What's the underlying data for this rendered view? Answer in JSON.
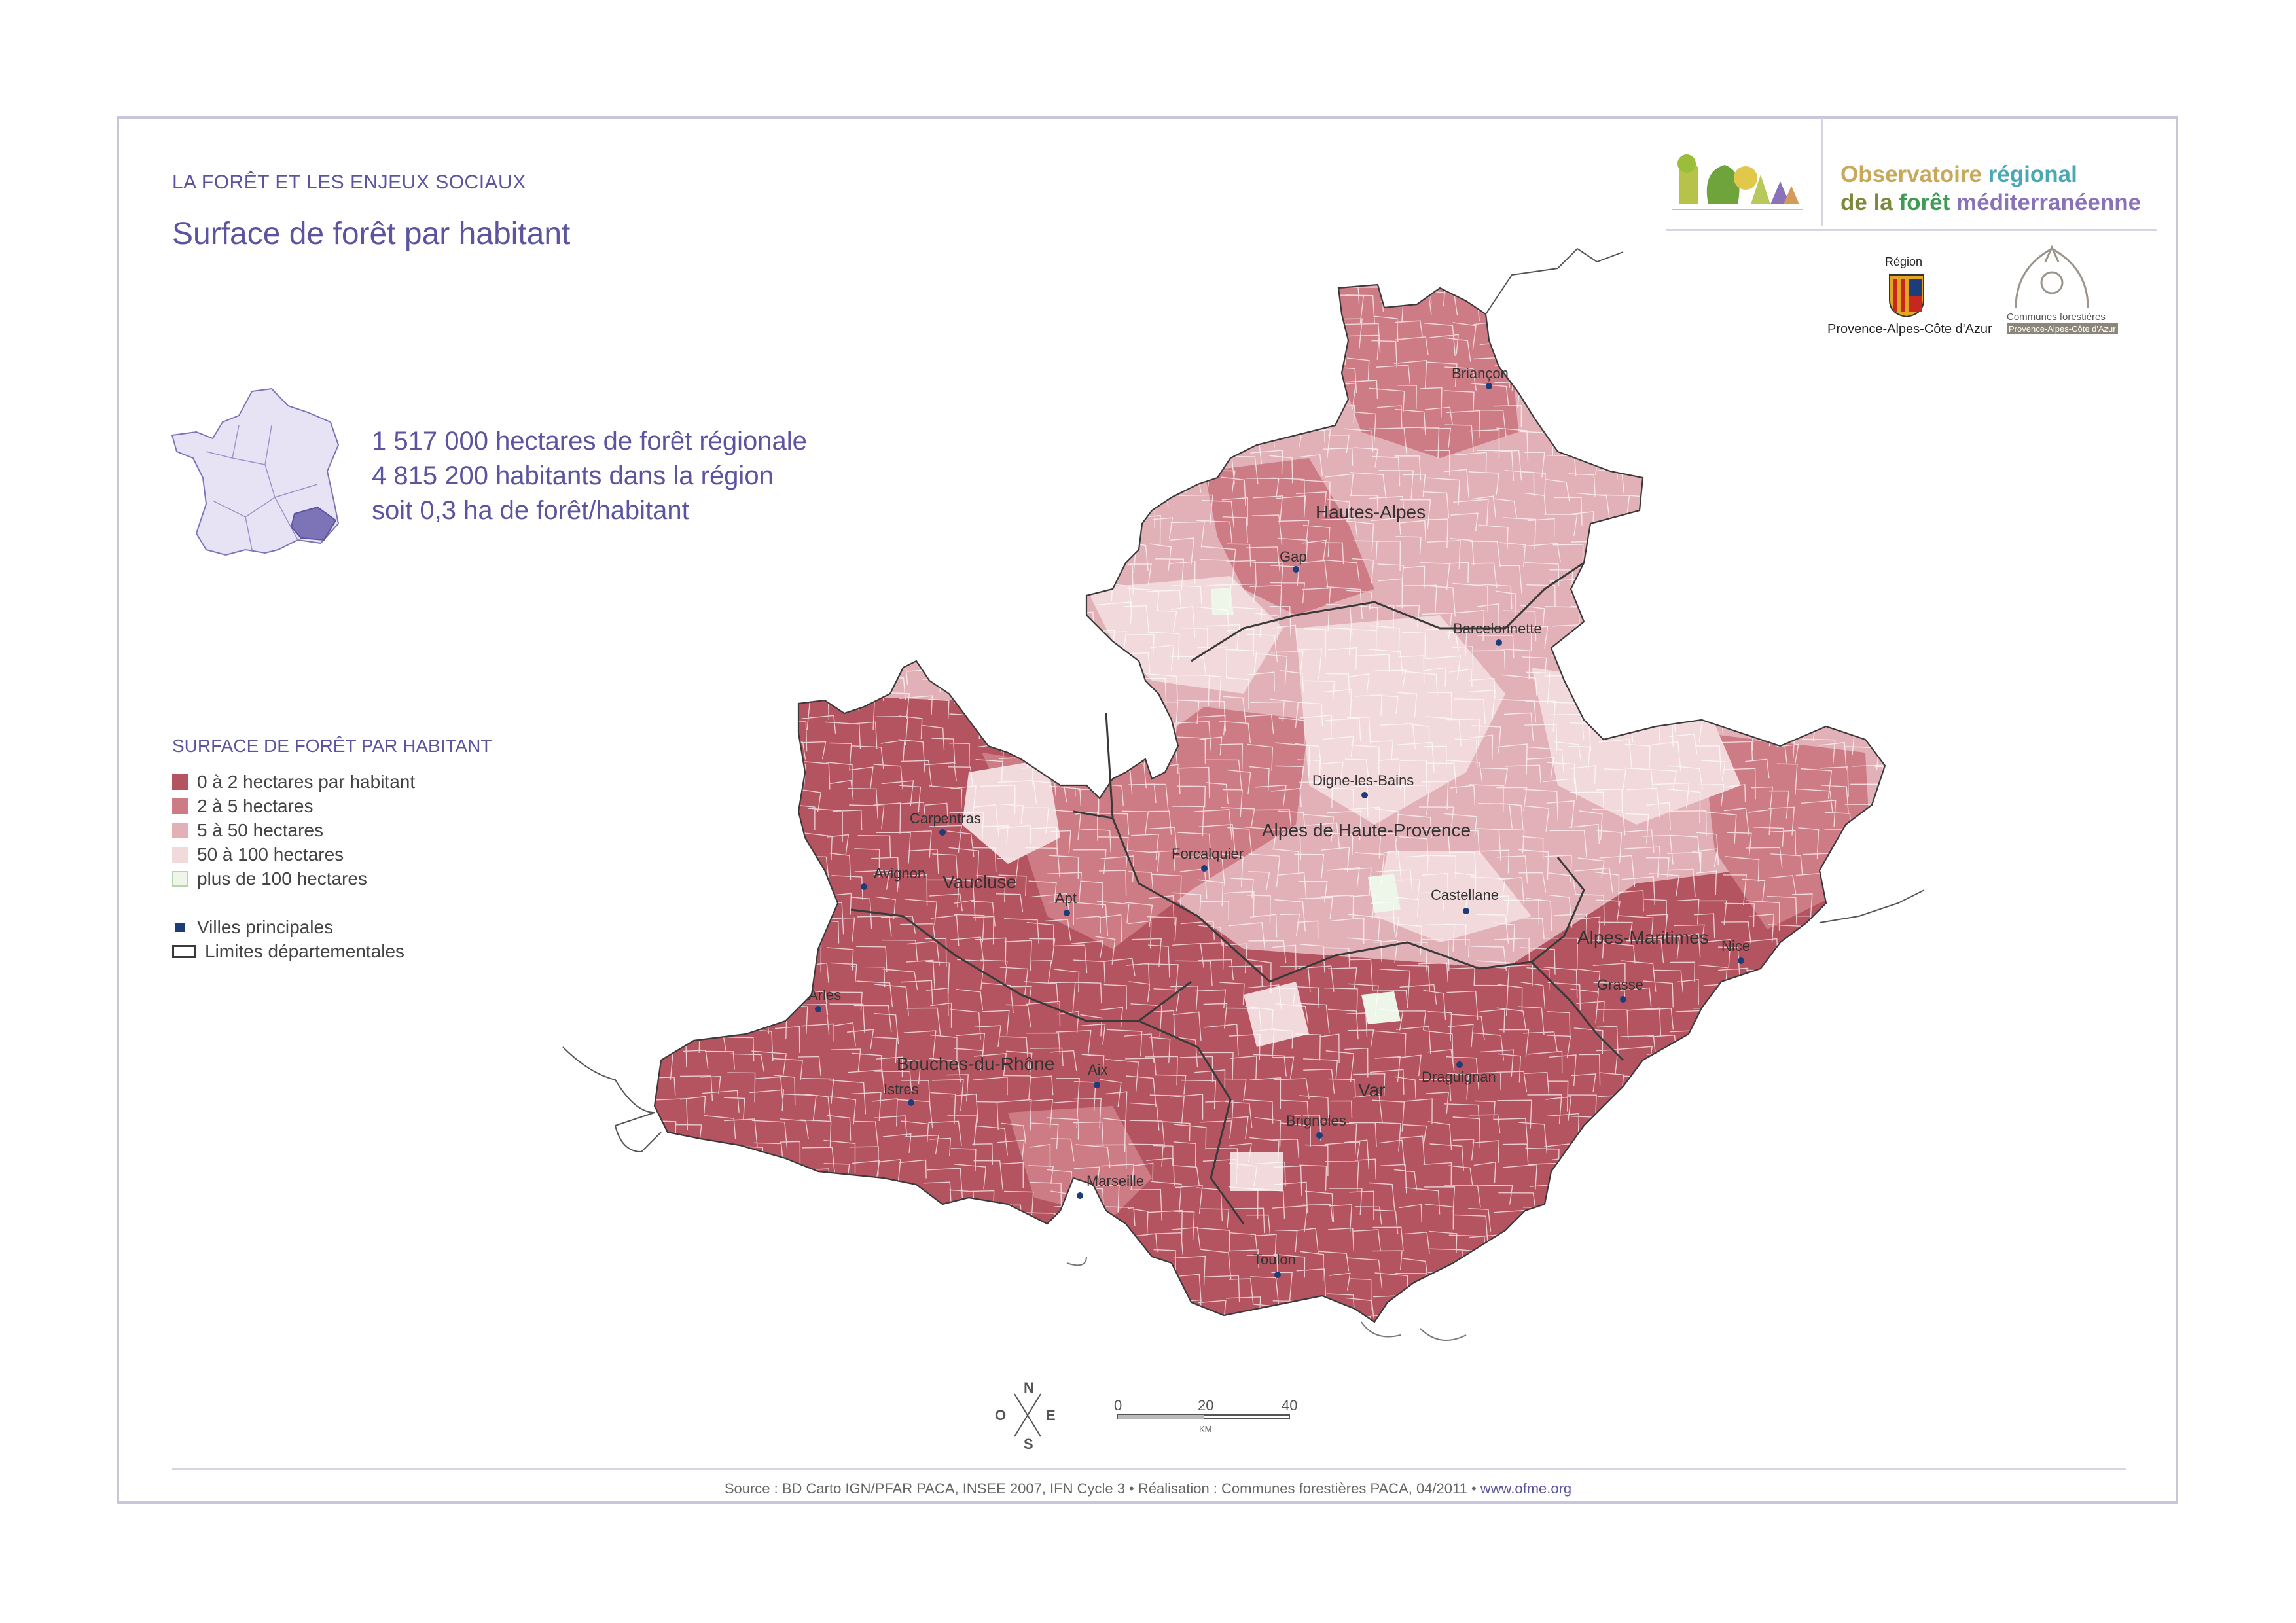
{
  "header": {
    "kicker": "LA FORÊT ET LES ENJEUX SOCIAUX",
    "title": "Surface de forêt par habitant"
  },
  "organization": {
    "line1_a": "Observatoire ",
    "line1_b": "régional",
    "line2_a": "de la ",
    "line2_b": "forêt",
    "line2_c": " méditerranéenne",
    "region_label_top": "Région",
    "region_label_bottom": "Provence-Alpes-Côte d'Azur",
    "communes_label": "Communes forestières",
    "communes_sub": "Provence-Alpes-Côte d'Azur"
  },
  "stats": {
    "line1": "1 517 000  hectares de forêt régionale",
    "line2": "4 815 200  habitants dans la région",
    "line3": "soit 0,3 ha de forêt/habitant"
  },
  "legend": {
    "title": "SURFACE DE FORÊT PAR HABITANT",
    "classes": [
      {
        "label": "0 à 2 hectares par habitant",
        "color": "#b45460"
      },
      {
        "label": "2 à 5 hectares",
        "color": "#cd7c85"
      },
      {
        "label": "5 à 50 hectares",
        "color": "#e2b1b7"
      },
      {
        "label": "50 à 100 hectares",
        "color": "#f1d9dc"
      },
      {
        "label": "plus de 100 hectares",
        "color": "#eef6ea"
      }
    ],
    "cities_label": "Villes principales",
    "boundaries_label": "Limites départementales"
  },
  "departments": [
    "Hautes-Alpes",
    "Alpes de Haute-Provence",
    "Vaucluse",
    "Alpes-Maritimes",
    "Bouches-du-Rhône",
    "Var"
  ],
  "cities": [
    "Briançon",
    "Gap",
    "Barcelonnette",
    "Digne-les-Bains",
    "Carpentras",
    "Forcalquier",
    "Avignon",
    "Apt",
    "Castellane",
    "Nice",
    "Grasse",
    "Arles",
    "Aix",
    "Istres",
    "Draguignan",
    "Brignoles",
    "Marseille",
    "Toulon"
  ],
  "compass": {
    "n": "N",
    "s": "S",
    "e": "E",
    "o": "O"
  },
  "scale": {
    "t0": "0",
    "t1": "20",
    "t2": "40",
    "unit": "KM"
  },
  "source": {
    "text": "Source : BD Carto IGN/PFAR PACA, INSEE 2007, IFN Cycle 3 • Réalisation : Communes forestières PACA, 04/2011 • ",
    "link": "www.ofme.org"
  },
  "colors": {
    "accent": "#5b55a0",
    "city": "#1d3d7a",
    "boundary": "#3a3a3a"
  }
}
